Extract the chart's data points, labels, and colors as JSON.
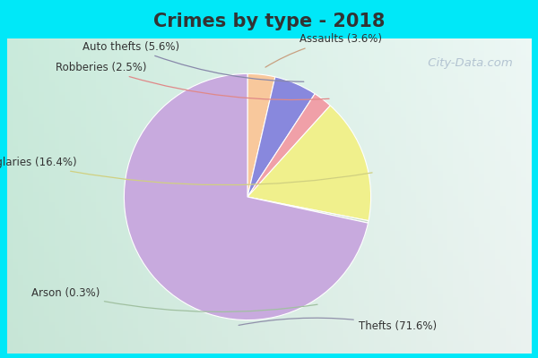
{
  "title": "Crimes by type - 2018",
  "title_fontsize": 15,
  "slices": [
    {
      "label": "Thefts",
      "pct": 71.6,
      "color": "#c8aade"
    },
    {
      "label": "Burglaries",
      "pct": 16.4,
      "color": "#f0f08c"
    },
    {
      "label": "Robberies",
      "pct": 2.5,
      "color": "#f0a0a8"
    },
    {
      "label": "Auto thefts",
      "pct": 5.6,
      "color": "#8888dd"
    },
    {
      "label": "Assaults",
      "pct": 3.6,
      "color": "#f8c89c"
    },
    {
      "label": "Arson",
      "pct": 0.3,
      "color": "#c8dcc8"
    }
  ],
  "label_fontsize": 9,
  "bg_cyan": "#00e8f8",
  "bg_inner_tl": "#c8e8d8",
  "bg_inner_tr": "#e8f4f0",
  "bg_inner_br": "#ddeedd",
  "watermark": " City-Data.com"
}
